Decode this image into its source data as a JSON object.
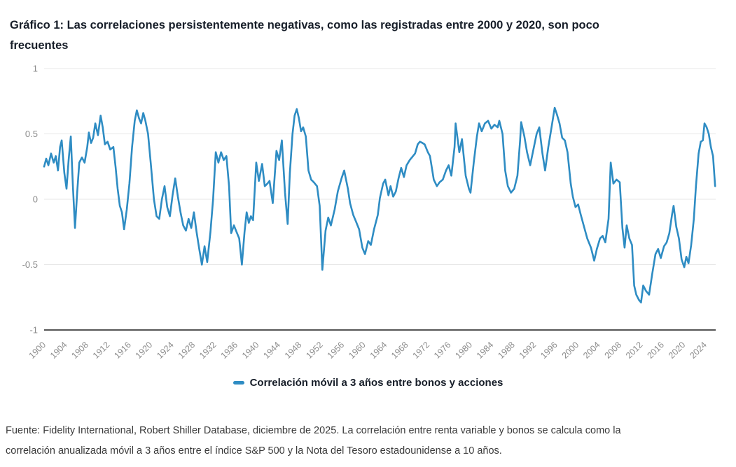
{
  "header": {
    "title_line1": "Gráfico 1: Las correlaciones persistentemente negativas, como las registradas entre 2000 y 2020, son poco",
    "title_line2": "frecuentes"
  },
  "legend": {
    "label": "Correlación móvil a 3 años entre bonos y acciones"
  },
  "footer": {
    "line1": "Fuente: Fidelity International, Robert Shiller Database, diciembre de 2025. La correlación entre renta variable y bonos se calcula como la",
    "line2": "correlación anualizada móvil a 3 años entre el índice S&P 500 y la Nota del Tesoro estadounidense a 10 años."
  },
  "colors": {
    "accent_blue": "#2e8cc3",
    "grid": "#e7e7e7",
    "axis": "#555555",
    "tick_text": "#8c8c8c",
    "title_text": "#171e29",
    "footer_text": "#3a3a3a"
  },
  "chart_data": {
    "type": "line",
    "title": "Gráfico 1: Las correlaciones persistentemente negativas, como las registradas entre 2000 y 2020, son poco frecuentes",
    "xlabel": "",
    "ylabel": "",
    "xlim": [
      1900,
      2026
    ],
    "ylim": [
      -1,
      1
    ],
    "grid": "horizontal",
    "legend_position": "bottom",
    "x_ticks": [
      1900,
      1904,
      1908,
      1912,
      1916,
      1920,
      1924,
      1928,
      1932,
      1936,
      1940,
      1944,
      1948,
      1952,
      1956,
      1960,
      1964,
      1968,
      1972,
      1976,
      1980,
      1984,
      1988,
      1992,
      1996,
      2000,
      2004,
      2008,
      2012,
      2016,
      2020,
      2024
    ],
    "y_ticks": [
      1,
      0.5,
      0,
      -0.5,
      -1
    ],
    "y_tick_labels": [
      "1",
      "0.5",
      "0",
      "-0.5",
      "-1"
    ],
    "series": [
      {
        "name": "Correlación móvil a 3 años entre bonos y acciones",
        "color": "#2e8cc3",
        "points": [
          [
            1900.0,
            0.25
          ],
          [
            1900.4,
            0.31
          ],
          [
            1900.8,
            0.26
          ],
          [
            1901.3,
            0.35
          ],
          [
            1901.8,
            0.28
          ],
          [
            1902.2,
            0.33
          ],
          [
            1902.6,
            0.22
          ],
          [
            1903.0,
            0.4
          ],
          [
            1903.3,
            0.45
          ],
          [
            1903.8,
            0.2
          ],
          [
            1904.2,
            0.08
          ],
          [
            1904.6,
            0.3
          ],
          [
            1905.0,
            0.48
          ],
          [
            1905.4,
            0.1
          ],
          [
            1905.8,
            -0.22
          ],
          [
            1906.2,
            0.05
          ],
          [
            1906.6,
            0.28
          ],
          [
            1907.1,
            0.32
          ],
          [
            1907.6,
            0.28
          ],
          [
            1908.1,
            0.4
          ],
          [
            1908.4,
            0.51
          ],
          [
            1908.8,
            0.43
          ],
          [
            1909.2,
            0.47
          ],
          [
            1909.6,
            0.58
          ],
          [
            1910.1,
            0.49
          ],
          [
            1910.6,
            0.64
          ],
          [
            1911.0,
            0.55
          ],
          [
            1911.4,
            0.42
          ],
          [
            1911.9,
            0.44
          ],
          [
            1912.4,
            0.38
          ],
          [
            1913.0,
            0.4
          ],
          [
            1913.4,
            0.25
          ],
          [
            1913.8,
            0.08
          ],
          [
            1914.2,
            -0.05
          ],
          [
            1914.6,
            -0.1
          ],
          [
            1915.0,
            -0.23
          ],
          [
            1915.5,
            -0.08
          ],
          [
            1916.0,
            0.12
          ],
          [
            1916.5,
            0.4
          ],
          [
            1917.0,
            0.6
          ],
          [
            1917.4,
            0.68
          ],
          [
            1917.8,
            0.62
          ],
          [
            1918.2,
            0.58
          ],
          [
            1918.6,
            0.66
          ],
          [
            1919.0,
            0.6
          ],
          [
            1919.5,
            0.5
          ],
          [
            1920.0,
            0.28
          ],
          [
            1920.6,
            0.0
          ],
          [
            1921.1,
            -0.13
          ],
          [
            1921.6,
            -0.15
          ],
          [
            1922.1,
            0.0
          ],
          [
            1922.6,
            0.1
          ],
          [
            1923.1,
            -0.06
          ],
          [
            1923.6,
            -0.13
          ],
          [
            1924.1,
            0.03
          ],
          [
            1924.6,
            0.16
          ],
          [
            1925.1,
            0.02
          ],
          [
            1925.6,
            -0.1
          ],
          [
            1926.1,
            -0.2
          ],
          [
            1926.6,
            -0.24
          ],
          [
            1927.1,
            -0.15
          ],
          [
            1927.6,
            -0.22
          ],
          [
            1928.1,
            -0.1
          ],
          [
            1928.6,
            -0.25
          ],
          [
            1929.1,
            -0.38
          ],
          [
            1929.6,
            -0.5
          ],
          [
            1930.1,
            -0.36
          ],
          [
            1930.6,
            -0.48
          ],
          [
            1931.2,
            -0.25
          ],
          [
            1931.7,
            0.0
          ],
          [
            1932.2,
            0.36
          ],
          [
            1932.7,
            0.28
          ],
          [
            1933.2,
            0.36
          ],
          [
            1933.7,
            0.3
          ],
          [
            1934.2,
            0.33
          ],
          [
            1934.7,
            0.1
          ],
          [
            1935.1,
            -0.26
          ],
          [
            1935.6,
            -0.2
          ],
          [
            1936.1,
            -0.25
          ],
          [
            1936.6,
            -0.3
          ],
          [
            1937.1,
            -0.5
          ],
          [
            1937.6,
            -0.25
          ],
          [
            1938.0,
            -0.1
          ],
          [
            1938.4,
            -0.18
          ],
          [
            1938.8,
            -0.13
          ],
          [
            1939.2,
            -0.16
          ],
          [
            1939.8,
            0.28
          ],
          [
            1940.3,
            0.14
          ],
          [
            1940.9,
            0.27
          ],
          [
            1941.4,
            0.1
          ],
          [
            1941.9,
            0.12
          ],
          [
            1942.3,
            0.14
          ],
          [
            1942.9,
            -0.03
          ],
          [
            1943.6,
            0.37
          ],
          [
            1944.1,
            0.3
          ],
          [
            1944.6,
            0.45
          ],
          [
            1945.2,
            0.05
          ],
          [
            1945.7,
            -0.19
          ],
          [
            1946.1,
            0.2
          ],
          [
            1946.6,
            0.5
          ],
          [
            1947.0,
            0.64
          ],
          [
            1947.4,
            0.69
          ],
          [
            1947.8,
            0.62
          ],
          [
            1948.2,
            0.52
          ],
          [
            1948.6,
            0.55
          ],
          [
            1949.1,
            0.48
          ],
          [
            1949.6,
            0.22
          ],
          [
            1950.1,
            0.15
          ],
          [
            1950.6,
            0.13
          ],
          [
            1951.2,
            0.1
          ],
          [
            1951.7,
            -0.05
          ],
          [
            1952.2,
            -0.54
          ],
          [
            1952.8,
            -0.24
          ],
          [
            1953.3,
            -0.14
          ],
          [
            1953.8,
            -0.2
          ],
          [
            1954.5,
            -0.08
          ],
          [
            1955.1,
            0.06
          ],
          [
            1955.8,
            0.16
          ],
          [
            1956.3,
            0.22
          ],
          [
            1957.0,
            0.08
          ],
          [
            1957.4,
            -0.03
          ],
          [
            1958.0,
            -0.12
          ],
          [
            1958.5,
            -0.17
          ],
          [
            1959.1,
            -0.23
          ],
          [
            1959.7,
            -0.37
          ],
          [
            1960.2,
            -0.42
          ],
          [
            1960.8,
            -0.32
          ],
          [
            1961.3,
            -0.35
          ],
          [
            1961.9,
            -0.23
          ],
          [
            1962.6,
            -0.12
          ],
          [
            1963.0,
            0.01
          ],
          [
            1963.6,
            0.12
          ],
          [
            1964.0,
            0.15
          ],
          [
            1964.6,
            0.03
          ],
          [
            1965.0,
            0.1
          ],
          [
            1965.5,
            0.02
          ],
          [
            1966.0,
            0.06
          ],
          [
            1966.5,
            0.16
          ],
          [
            1967.0,
            0.24
          ],
          [
            1967.5,
            0.17
          ],
          [
            1968.0,
            0.26
          ],
          [
            1968.6,
            0.3
          ],
          [
            1969.2,
            0.33
          ],
          [
            1969.6,
            0.35
          ],
          [
            1970.1,
            0.42
          ],
          [
            1970.5,
            0.44
          ],
          [
            1971.0,
            0.43
          ],
          [
            1971.4,
            0.42
          ],
          [
            1972.0,
            0.36
          ],
          [
            1972.4,
            0.33
          ],
          [
            1973.1,
            0.15
          ],
          [
            1973.7,
            0.1
          ],
          [
            1974.2,
            0.13
          ],
          [
            1974.8,
            0.15
          ],
          [
            1975.4,
            0.22
          ],
          [
            1975.9,
            0.26
          ],
          [
            1976.4,
            0.18
          ],
          [
            1977.0,
            0.4
          ],
          [
            1977.2,
            0.58
          ],
          [
            1977.9,
            0.36
          ],
          [
            1978.4,
            0.46
          ],
          [
            1979.1,
            0.18
          ],
          [
            1979.7,
            0.08
          ],
          [
            1980.0,
            0.05
          ],
          [
            1980.6,
            0.28
          ],
          [
            1981.2,
            0.48
          ],
          [
            1981.6,
            0.58
          ],
          [
            1982.1,
            0.52
          ],
          [
            1982.7,
            0.58
          ],
          [
            1983.3,
            0.6
          ],
          [
            1983.9,
            0.54
          ],
          [
            1984.5,
            0.57
          ],
          [
            1985.1,
            0.55
          ],
          [
            1985.4,
            0.6
          ],
          [
            1986.0,
            0.5
          ],
          [
            1986.5,
            0.22
          ],
          [
            1987.0,
            0.1
          ],
          [
            1987.6,
            0.05
          ],
          [
            1988.2,
            0.08
          ],
          [
            1988.8,
            0.18
          ],
          [
            1989.3,
            0.45
          ],
          [
            1989.5,
            0.59
          ],
          [
            1990.1,
            0.48
          ],
          [
            1990.6,
            0.36
          ],
          [
            1991.2,
            0.26
          ],
          [
            1991.8,
            0.38
          ],
          [
            1992.4,
            0.5
          ],
          [
            1992.9,
            0.55
          ],
          [
            1993.5,
            0.35
          ],
          [
            1994.0,
            0.22
          ],
          [
            1994.6,
            0.4
          ],
          [
            1995.2,
            0.55
          ],
          [
            1995.8,
            0.7
          ],
          [
            1996.2,
            0.65
          ],
          [
            1996.7,
            0.58
          ],
          [
            1997.2,
            0.47
          ],
          [
            1997.7,
            0.45
          ],
          [
            1998.2,
            0.36
          ],
          [
            1998.8,
            0.12
          ],
          [
            1999.2,
            0.02
          ],
          [
            1999.7,
            -0.06
          ],
          [
            2000.2,
            -0.04
          ],
          [
            2000.7,
            -0.12
          ],
          [
            2001.3,
            -0.21
          ],
          [
            2001.9,
            -0.3
          ],
          [
            2002.6,
            -0.37
          ],
          [
            2003.2,
            -0.47
          ],
          [
            2003.7,
            -0.38
          ],
          [
            2004.3,
            -0.3
          ],
          [
            2004.8,
            -0.28
          ],
          [
            2005.3,
            -0.33
          ],
          [
            2005.9,
            -0.15
          ],
          [
            2006.3,
            0.28
          ],
          [
            2006.8,
            0.12
          ],
          [
            2007.4,
            0.15
          ],
          [
            2008.0,
            0.13
          ],
          [
            2008.5,
            -0.22
          ],
          [
            2008.9,
            -0.37
          ],
          [
            2009.3,
            -0.2
          ],
          [
            2009.8,
            -0.3
          ],
          [
            2010.3,
            -0.35
          ],
          [
            2010.7,
            -0.66
          ],
          [
            2011.1,
            -0.73
          ],
          [
            2011.6,
            -0.77
          ],
          [
            2012.0,
            -0.79
          ],
          [
            2012.4,
            -0.66
          ],
          [
            2012.9,
            -0.7
          ],
          [
            2013.5,
            -0.73
          ],
          [
            2014.1,
            -0.57
          ],
          [
            2014.7,
            -0.42
          ],
          [
            2015.2,
            -0.38
          ],
          [
            2015.7,
            -0.45
          ],
          [
            2016.3,
            -0.36
          ],
          [
            2016.8,
            -0.33
          ],
          [
            2017.3,
            -0.26
          ],
          [
            2017.8,
            -0.12
          ],
          [
            2018.1,
            -0.05
          ],
          [
            2018.6,
            -0.21
          ],
          [
            2019.1,
            -0.3
          ],
          [
            2019.6,
            -0.46
          ],
          [
            2020.1,
            -0.52
          ],
          [
            2020.5,
            -0.44
          ],
          [
            2020.9,
            -0.49
          ],
          [
            2021.4,
            -0.35
          ],
          [
            2021.9,
            -0.15
          ],
          [
            2022.3,
            0.1
          ],
          [
            2022.8,
            0.35
          ],
          [
            2023.2,
            0.44
          ],
          [
            2023.6,
            0.45
          ],
          [
            2023.9,
            0.58
          ],
          [
            2024.3,
            0.55
          ],
          [
            2024.7,
            0.5
          ],
          [
            2025.1,
            0.4
          ],
          [
            2025.5,
            0.33
          ],
          [
            2025.9,
            0.1
          ]
        ]
      }
    ]
  }
}
